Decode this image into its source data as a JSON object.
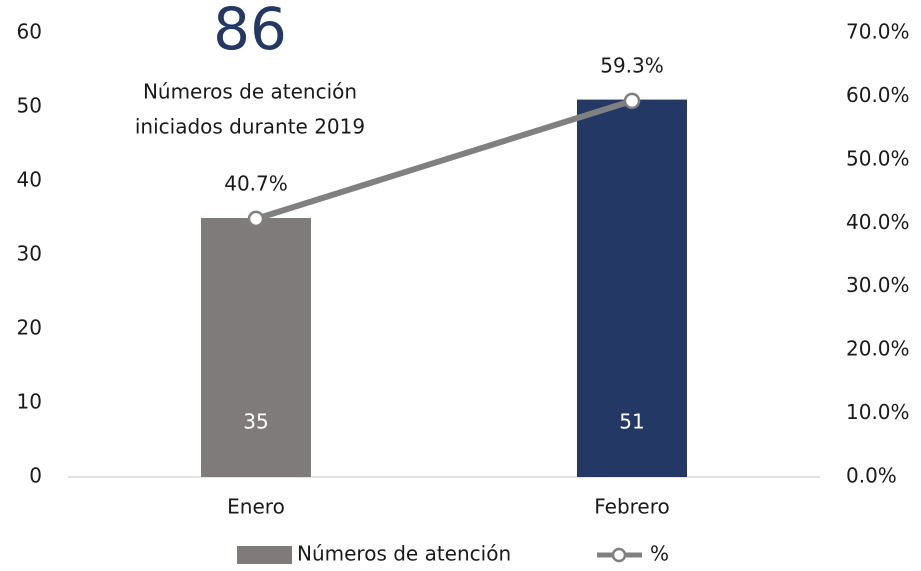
{
  "chart_data": {
    "type": "bar",
    "total": 86,
    "total_label": [
      "Números de atención",
      "iniciados durante 2019"
    ],
    "categories": [
      "Enero",
      "Febrero"
    ],
    "series": [
      {
        "name": "Números de atención",
        "type": "bar",
        "color": "#7f7b7b",
        "colors": [
          "#7f7b7b",
          "#233864"
        ],
        "values": [
          35,
          51
        ]
      },
      {
        "name": "%",
        "type": "line",
        "axis": "y2",
        "color": "#808080",
        "values": [
          40.7,
          59.3
        ],
        "value_labels": [
          "40.7%",
          "59.3%"
        ]
      }
    ],
    "ylim": [
      0,
      60
    ],
    "yticks": [
      0,
      10,
      20,
      30,
      40,
      50,
      60
    ],
    "y2lim": [
      0,
      70
    ],
    "y2ticks": [
      {
        "value": 0,
        "label": "0.0%"
      },
      {
        "value": 10,
        "label": "10.0%"
      },
      {
        "value": 20,
        "label": "20.0%"
      },
      {
        "value": 30,
        "label": "30.0%"
      },
      {
        "value": 40,
        "label": "40.0%"
      },
      {
        "value": 50,
        "label": "50.0%"
      },
      {
        "value": 60,
        "label": "60.0%"
      },
      {
        "value": 70,
        "label": "70.0%"
      }
    ],
    "grid": false,
    "legend": "bottom"
  }
}
